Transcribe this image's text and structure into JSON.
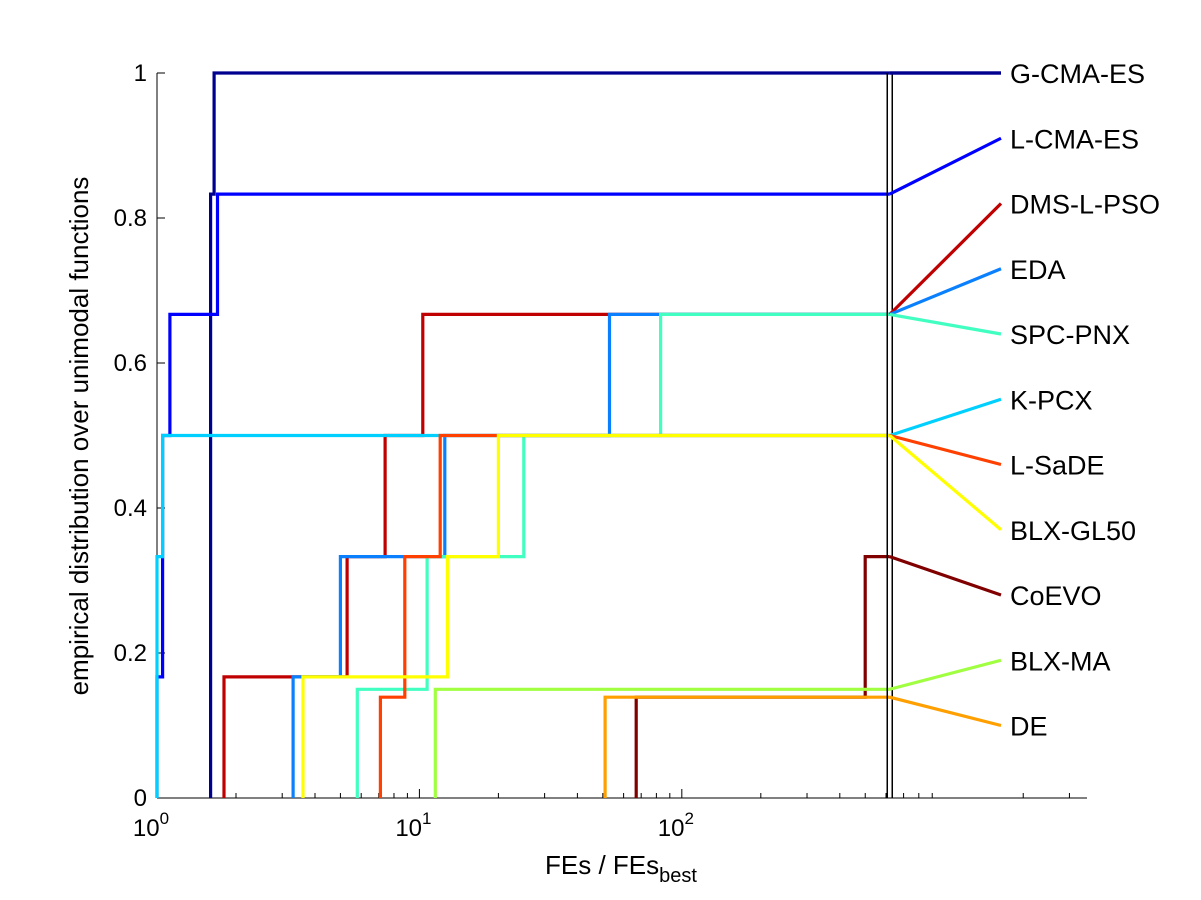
{
  "chart_data": {
    "type": "line",
    "xlabel": "FEs / FEs",
    "xlabel_subscript": "best",
    "ylabel": "empirical distribution over unimodal functions",
    "x_scale": "log",
    "xlim": [
      1,
      3500
    ],
    "ylim": [
      0,
      1
    ],
    "x_ticks": [
      {
        "value": 1,
        "base": "10",
        "exp": "0"
      },
      {
        "value": 10,
        "base": "10",
        "exp": "1"
      },
      {
        "value": 100,
        "base": "10",
        "exp": "2"
      }
    ],
    "y_ticks": [
      "0",
      "0.2",
      "0.4",
      "0.6",
      "0.8",
      "1"
    ],
    "y_tick_values": [
      0,
      0.2,
      0.4,
      0.6,
      0.8,
      1
    ],
    "grid": false,
    "legend_position": "right",
    "reference_line_x": 620,
    "series": [
      {
        "name": "G-CMA-ES",
        "color": "#00008f",
        "end": 1.0,
        "steps": [
          [
            1.6,
            0.833
          ],
          [
            1.65,
            1.0
          ]
        ]
      },
      {
        "name": "L-CMA-ES",
        "color": "#0000ff",
        "end": 0.833,
        "steps": [
          [
            1.0,
            0.167
          ],
          [
            1.05,
            0.5
          ],
          [
            1.12,
            0.667
          ],
          [
            1.7,
            0.833
          ]
        ]
      },
      {
        "name": "DMS-L-PSO",
        "color": "#c00000",
        "end": 0.667,
        "steps": [
          [
            1.8,
            0.167
          ],
          [
            5.3,
            0.333
          ],
          [
            7.4,
            0.5
          ],
          [
            10.3,
            0.667
          ]
        ]
      },
      {
        "name": "EDA",
        "color": "#0a80ff",
        "end": 0.667,
        "steps": [
          [
            3.3,
            0.167
          ],
          [
            5.0,
            0.333
          ],
          [
            12.5,
            0.5
          ],
          [
            53,
            0.667
          ]
        ]
      },
      {
        "name": "SPC-PNX",
        "color": "#40ffc0",
        "end": 0.667,
        "steps": [
          [
            5.8,
            0.15
          ],
          [
            10.7,
            0.333
          ],
          [
            25,
            0.5
          ],
          [
            83,
            0.667
          ]
        ]
      },
      {
        "name": "K-PCX",
        "color": "#00d0ff",
        "end": 0.5,
        "steps": [
          [
            1.0,
            0.333
          ],
          [
            1.05,
            0.5
          ]
        ]
      },
      {
        "name": "L-SaDE",
        "color": "#ff4000",
        "end": 0.5,
        "steps": [
          [
            7.1,
            0.139
          ],
          [
            8.8,
            0.333
          ],
          [
            12.0,
            0.5
          ]
        ]
      },
      {
        "name": "BLX-GL50",
        "color": "#ffff00",
        "end": 0.5,
        "steps": [
          [
            3.6,
            0.167
          ],
          [
            12.8,
            0.333
          ],
          [
            20,
            0.5
          ]
        ]
      },
      {
        "name": "CoEVO",
        "color": "#800000",
        "end": 0.333,
        "steps": [
          [
            67,
            0.139
          ],
          [
            500,
            0.333
          ]
        ]
      },
      {
        "name": "BLX-MA",
        "color": "#a0ff40",
        "end": 0.167,
        "steps": [
          [
            11.5,
            0.15
          ]
        ]
      },
      {
        "name": "DE",
        "color": "#ff9f00",
        "end": 0.167,
        "steps": [
          [
            51,
            0.139
          ]
        ]
      }
    ]
  }
}
